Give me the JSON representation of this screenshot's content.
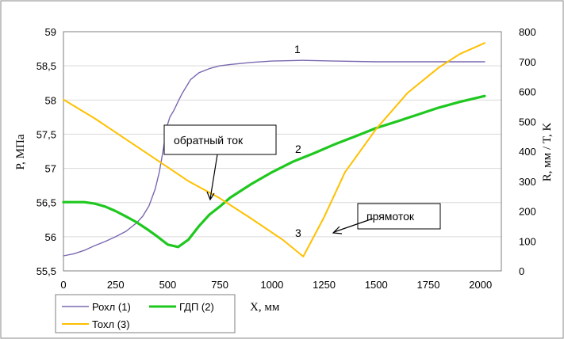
{
  "chart_data": {
    "type": "line",
    "xlabel": "X, мм",
    "ylabel_left": "P, МПа",
    "ylabel_right": "R, мм / T, K",
    "xlim": [
      0,
      2100
    ],
    "ylim_left": [
      55.5,
      59
    ],
    "ylim_right": [
      0,
      800
    ],
    "x_ticks": [
      "0",
      "250",
      "500",
      "750",
      "1000",
      "1250",
      "1500",
      "1750",
      "2000"
    ],
    "y_left_ticks": [
      "55,5",
      "56",
      "56,5",
      "57",
      "57,5",
      "58",
      "58,5",
      "59"
    ],
    "y_right_ticks": [
      "0",
      "100",
      "200",
      "300",
      "400",
      "500",
      "600",
      "700",
      "800"
    ],
    "grid": "horizontal",
    "legend_position": "bottom-left",
    "series": [
      {
        "name": "Рохл (1)",
        "color": "#7b68b0",
        "axis": "left",
        "points": [
          [
            0,
            55.72
          ],
          [
            50,
            55.75
          ],
          [
            100,
            55.8
          ],
          [
            150,
            55.87
          ],
          [
            200,
            55.93
          ],
          [
            250,
            56.0
          ],
          [
            300,
            56.08
          ],
          [
            350,
            56.2
          ],
          [
            380,
            56.3
          ],
          [
            410,
            56.45
          ],
          [
            440,
            56.7
          ],
          [
            460,
            56.95
          ],
          [
            480,
            57.3
          ],
          [
            495,
            57.6
          ],
          [
            510,
            57.75
          ],
          [
            530,
            57.85
          ],
          [
            550,
            57.98
          ],
          [
            570,
            58.1
          ],
          [
            590,
            58.2
          ],
          [
            610,
            58.3
          ],
          [
            650,
            58.4
          ],
          [
            700,
            58.46
          ],
          [
            750,
            58.5
          ],
          [
            800,
            58.52
          ],
          [
            900,
            58.55
          ],
          [
            1000,
            58.57
          ],
          [
            1150,
            58.58
          ],
          [
            1300,
            58.57
          ],
          [
            1500,
            58.56
          ],
          [
            1800,
            58.56
          ],
          [
            2020,
            58.56
          ]
        ]
      },
      {
        "name": "ГДП (2)",
        "color": "#1ec81e",
        "axis": "right",
        "points": [
          [
            0,
            230
          ],
          [
            100,
            230
          ],
          [
            150,
            225
          ],
          [
            200,
            215
          ],
          [
            250,
            200
          ],
          [
            300,
            182
          ],
          [
            350,
            163
          ],
          [
            400,
            140
          ],
          [
            450,
            115
          ],
          [
            500,
            88
          ],
          [
            550,
            80
          ],
          [
            600,
            105
          ],
          [
            650,
            150
          ],
          [
            700,
            188
          ],
          [
            750,
            215
          ],
          [
            800,
            245
          ],
          [
            900,
            290
          ],
          [
            1000,
            330
          ],
          [
            1100,
            365
          ],
          [
            1200,
            393
          ],
          [
            1300,
            423
          ],
          [
            1400,
            450
          ],
          [
            1500,
            478
          ],
          [
            1600,
            500
          ],
          [
            1700,
            523
          ],
          [
            1800,
            546
          ],
          [
            1900,
            565
          ],
          [
            2020,
            585
          ]
        ]
      },
      {
        "name": "Тохл (3)",
        "color": "#ffc000",
        "axis": "right",
        "points": [
          [
            0,
            573
          ],
          [
            150,
            510
          ],
          [
            300,
            440
          ],
          [
            450,
            370
          ],
          [
            600,
            300
          ],
          [
            750,
            243
          ],
          [
            900,
            175
          ],
          [
            1050,
            105
          ],
          [
            1150,
            48
          ],
          [
            1250,
            180
          ],
          [
            1350,
            330
          ],
          [
            1500,
            475
          ],
          [
            1650,
            595
          ],
          [
            1800,
            680
          ],
          [
            1900,
            725
          ],
          [
            2020,
            762
          ]
        ]
      }
    ],
    "annotations": [
      {
        "text": "обратный ток"
      },
      {
        "text": "прямоток"
      },
      {
        "text": "1"
      },
      {
        "text": "2"
      },
      {
        "text": "3"
      }
    ]
  }
}
